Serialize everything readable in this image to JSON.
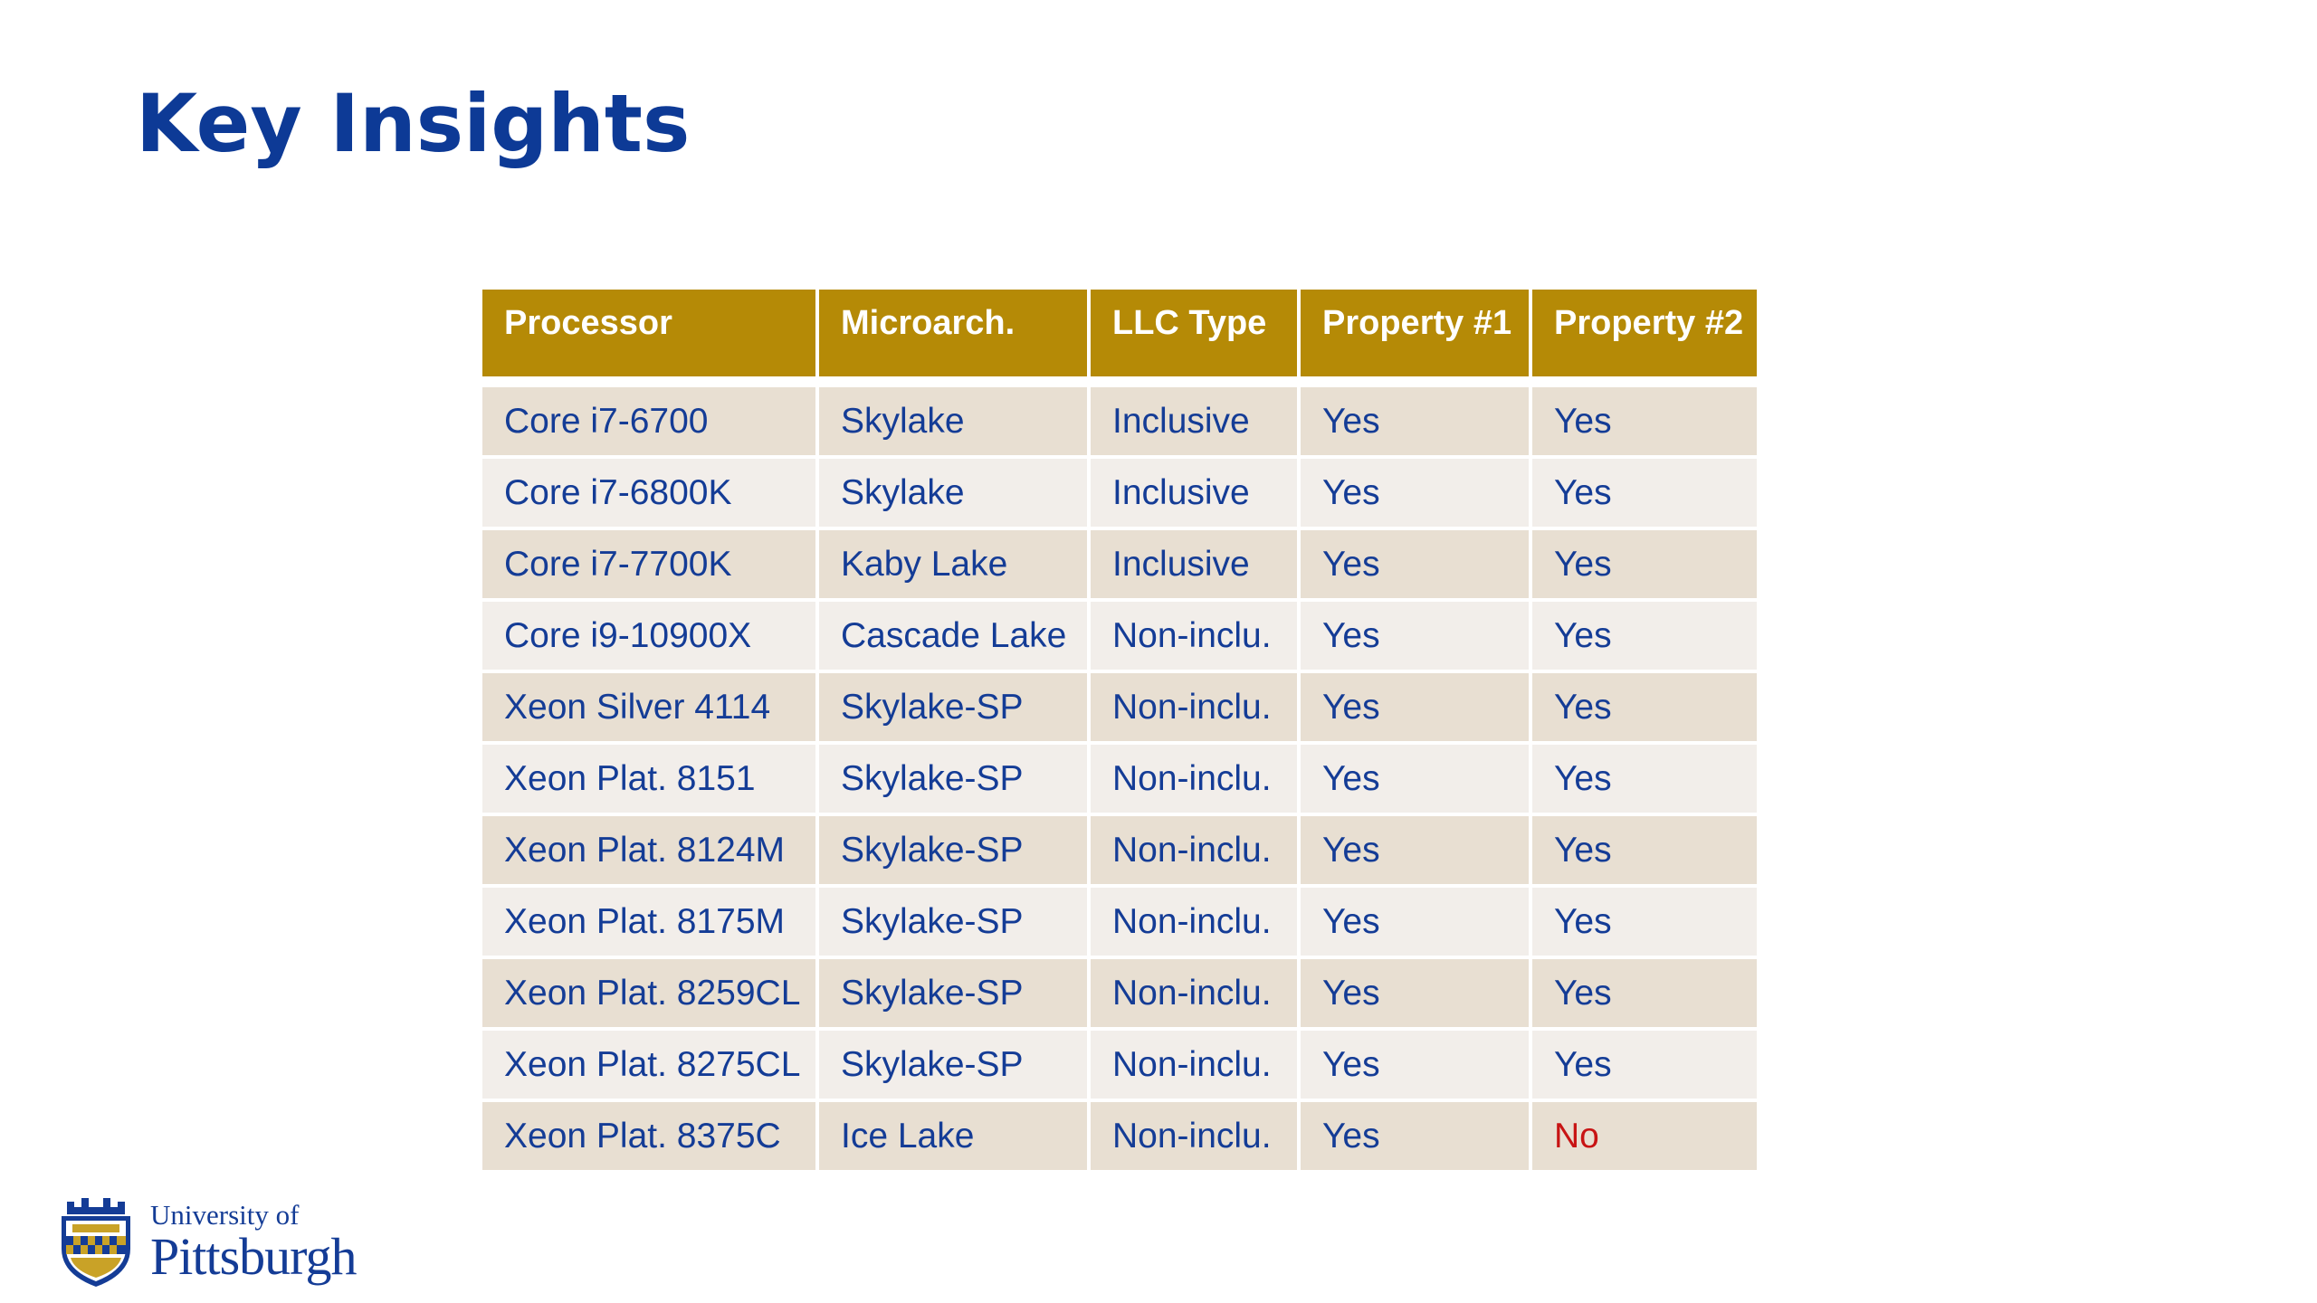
{
  "slide": {
    "title": "Key Insights"
  },
  "table": {
    "headers": [
      "Processor",
      "Microarch.",
      "LLC Type",
      "Property #1",
      "Property #2"
    ],
    "rows": [
      [
        "Core i7-6700",
        "Skylake",
        "Inclusive",
        "Yes",
        "Yes"
      ],
      [
        "Core i7-6800K",
        "Skylake",
        "Inclusive",
        "Yes",
        "Yes"
      ],
      [
        "Core i7-7700K",
        "Kaby Lake",
        "Inclusive",
        "Yes",
        "Yes"
      ],
      [
        "Core i9-10900X",
        "Cascade Lake",
        "Non-inclu.",
        "Yes",
        "Yes"
      ],
      [
        "Xeon Silver 4114",
        "Skylake-SP",
        "Non-inclu.",
        "Yes",
        "Yes"
      ],
      [
        "Xeon Plat. 8151",
        "Skylake-SP",
        "Non-inclu.",
        "Yes",
        "Yes"
      ],
      [
        "Xeon Plat. 8124M",
        "Skylake-SP",
        "Non-inclu.",
        "Yes",
        "Yes"
      ],
      [
        "Xeon Plat. 8175M",
        "Skylake-SP",
        "Non-inclu.",
        "Yes",
        "Yes"
      ],
      [
        "Xeon Plat. 8259CL",
        "Skylake-SP",
        "Non-inclu.",
        "Yes",
        "Yes"
      ],
      [
        "Xeon Plat. 8275CL",
        "Skylake-SP",
        "Non-inclu.",
        "Yes",
        "Yes"
      ],
      [
        "Xeon Plat. 8375C",
        "Ice Lake",
        "Non-inclu.",
        "Yes",
        "No"
      ]
    ]
  },
  "logo": {
    "line1": "University of",
    "line2": "Pittsburgh",
    "icon": "university-seal-icon"
  },
  "colors": {
    "title": "#0d3a96",
    "header_bg": "#b58a06",
    "row_odd": "#e8dfd2",
    "row_even": "#f2eeea",
    "cell_text": "#143c96",
    "negative": "#c81414"
  }
}
